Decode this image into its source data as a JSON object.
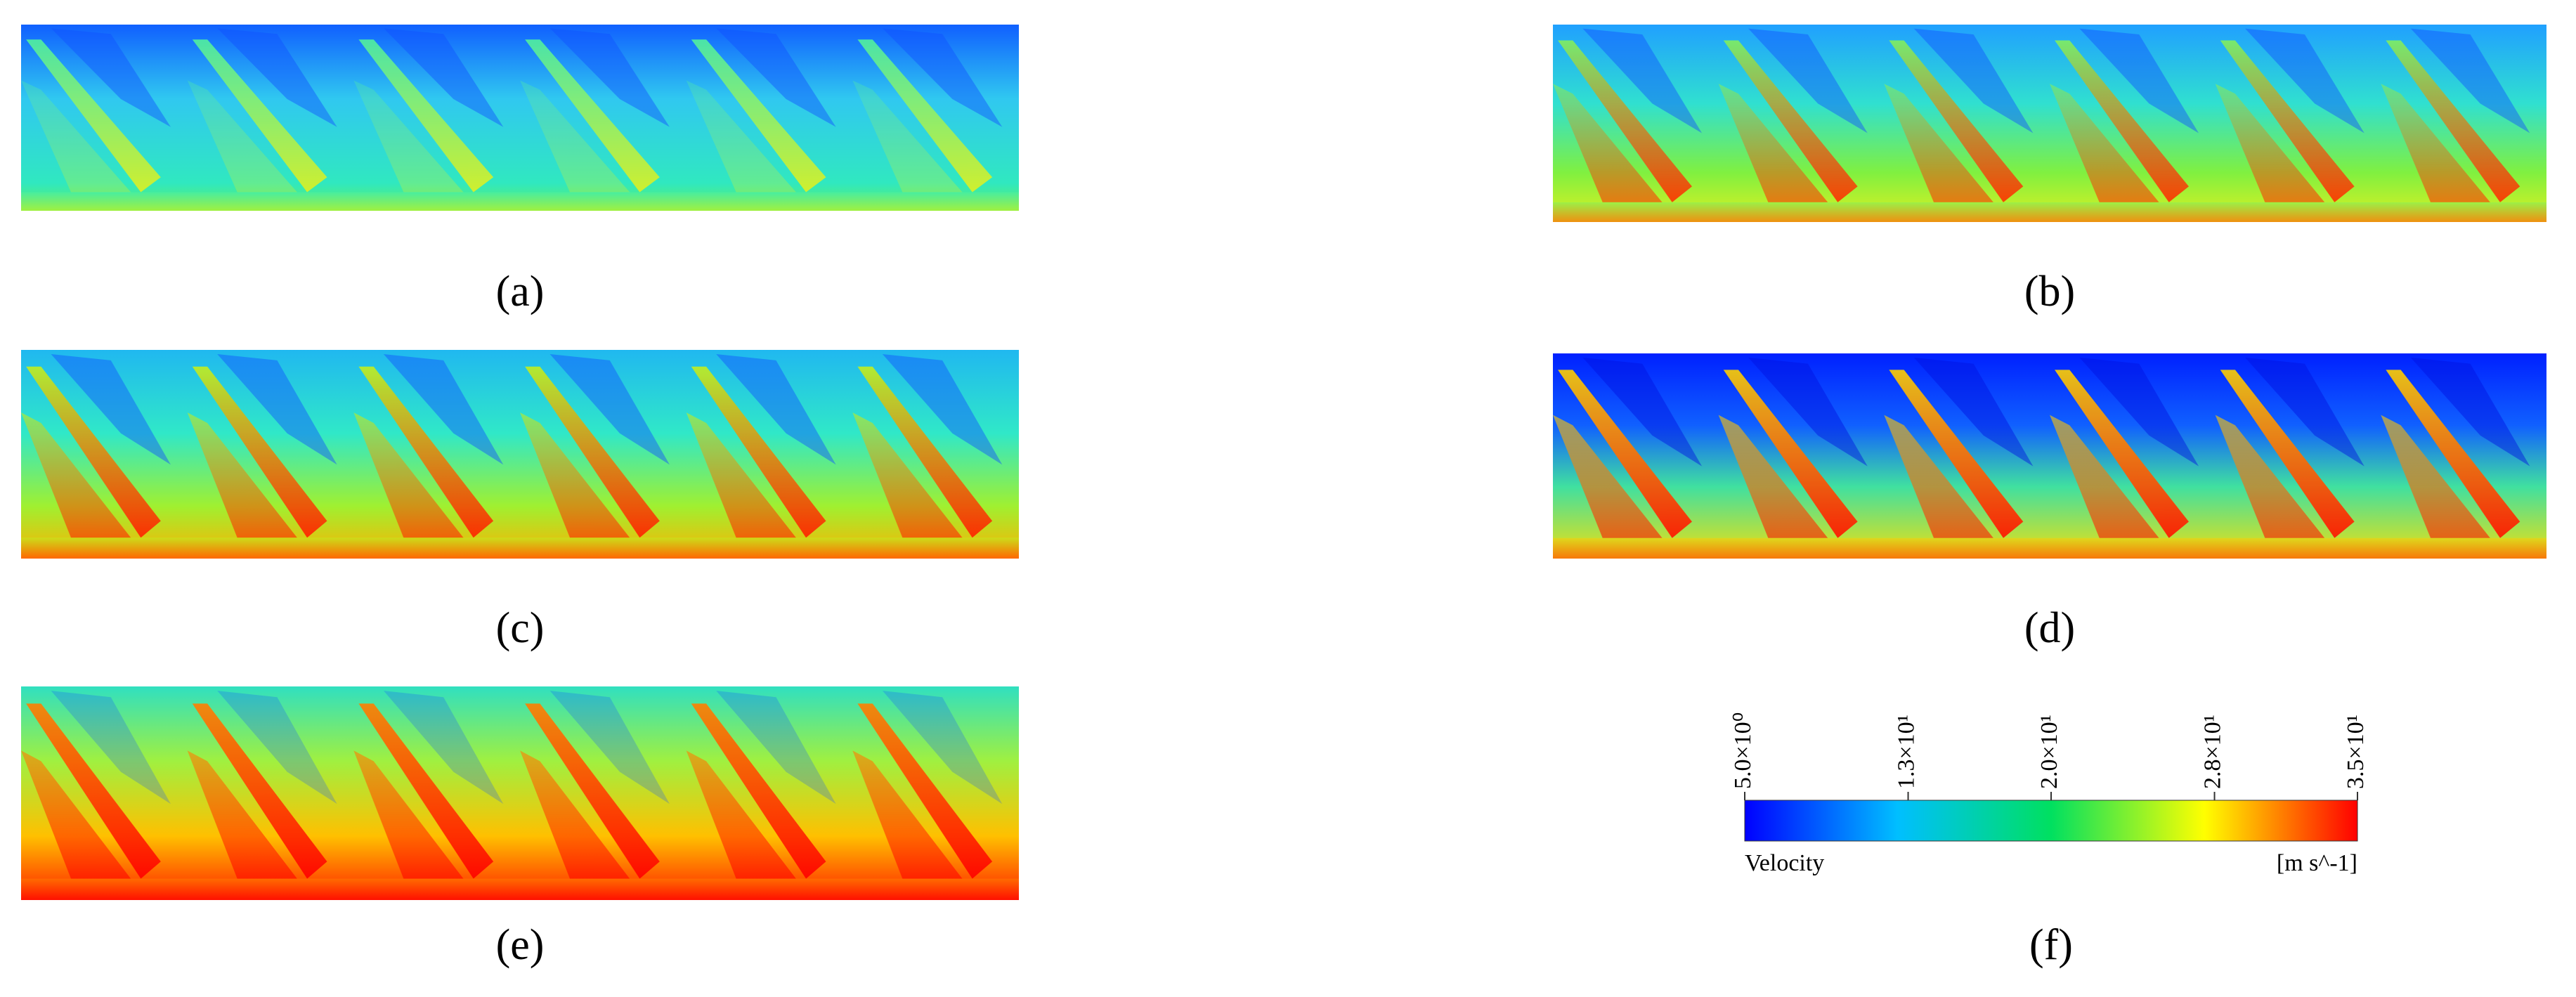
{
  "panels": [
    {
      "id": "a",
      "label": "(a)"
    },
    {
      "id": "b",
      "label": "(b)"
    },
    {
      "id": "c",
      "label": "(c)"
    },
    {
      "id": "d",
      "label": "(d)"
    },
    {
      "id": "e",
      "label": "(e)"
    }
  ],
  "colorbar": {
    "label": "(f)",
    "title": "Velocity",
    "unit": "[m s^-1]",
    "lim": [
      5,
      35
    ],
    "ticks": [
      {
        "value": 5,
        "label": "5.0×10⁰"
      },
      {
        "value": 13,
        "label": "1.3×10¹"
      },
      {
        "value": 20,
        "label": "2.0×10¹"
      },
      {
        "value": 28,
        "label": "2.8×10¹"
      },
      {
        "value": 35,
        "label": "3.5×10¹"
      }
    ]
  }
}
